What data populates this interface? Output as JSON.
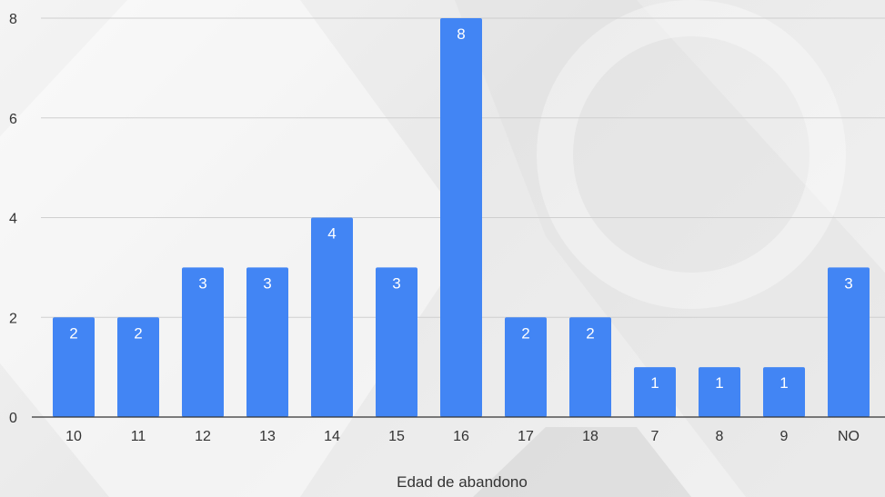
{
  "chart_data": {
    "type": "bar",
    "title": "",
    "xlabel": "Edad de abandono",
    "ylabel": "",
    "categories": [
      "10",
      "11",
      "12",
      "13",
      "14",
      "15",
      "16",
      "17",
      "18",
      "7",
      "8",
      "9",
      "NO"
    ],
    "values": [
      2,
      2,
      3,
      3,
      4,
      3,
      8,
      2,
      2,
      1,
      1,
      1,
      3
    ],
    "ylim": [
      0,
      8
    ],
    "yticks": [
      0,
      2,
      4,
      6,
      8
    ],
    "grid": true,
    "legend": "none",
    "bar_color": "#4285f4",
    "data_labels": true
  }
}
